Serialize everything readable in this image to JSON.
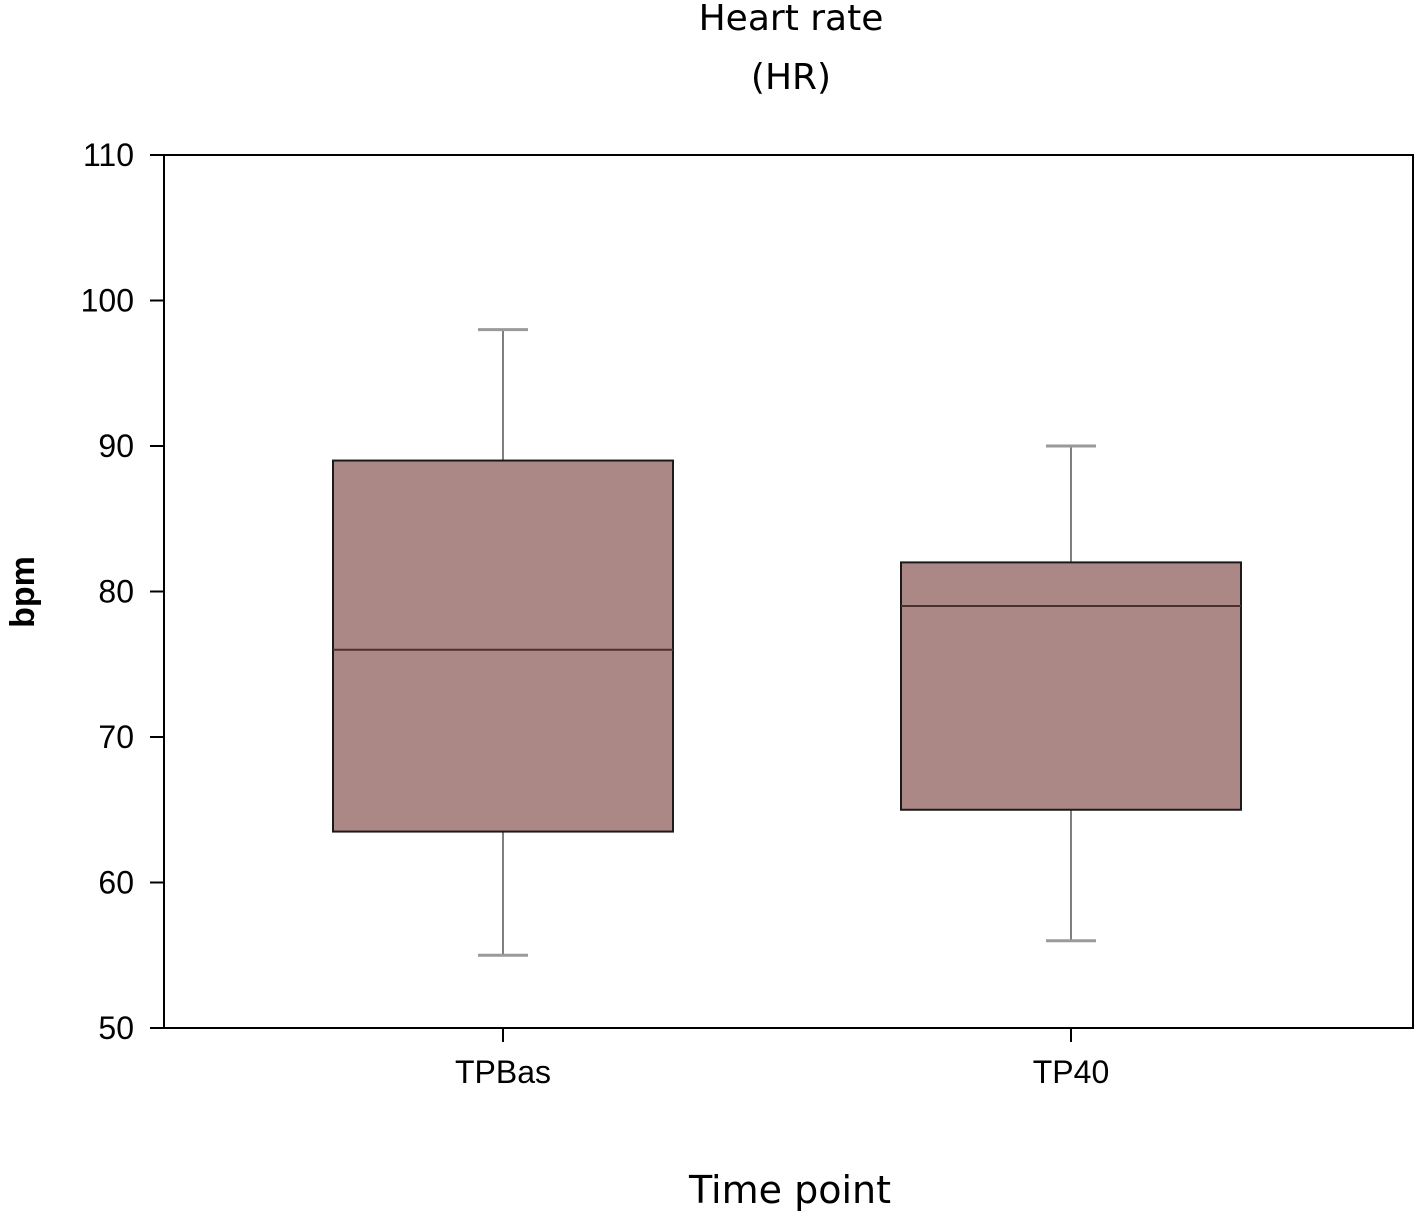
{
  "chart_data": {
    "type": "box",
    "title": "Heart rate",
    "subtitle": "(HR)",
    "xlabel": "Time point",
    "ylabel": "bpm",
    "ylim": [
      50,
      110
    ],
    "yticks": [
      50,
      60,
      70,
      80,
      90,
      100,
      110
    ],
    "categories": [
      "TPBas",
      "TP40"
    ],
    "boxes": [
      {
        "category": "TPBas",
        "whisker_low": 55,
        "q1": 63.5,
        "median": 76,
        "q3": 89,
        "whisker_high": 98
      },
      {
        "category": "TP40",
        "whisker_low": 56,
        "q1": 65,
        "median": 79,
        "q3": 82,
        "whisker_high": 90
      }
    ],
    "box_color": "#ab8886",
    "grid": false,
    "legend": "none"
  }
}
